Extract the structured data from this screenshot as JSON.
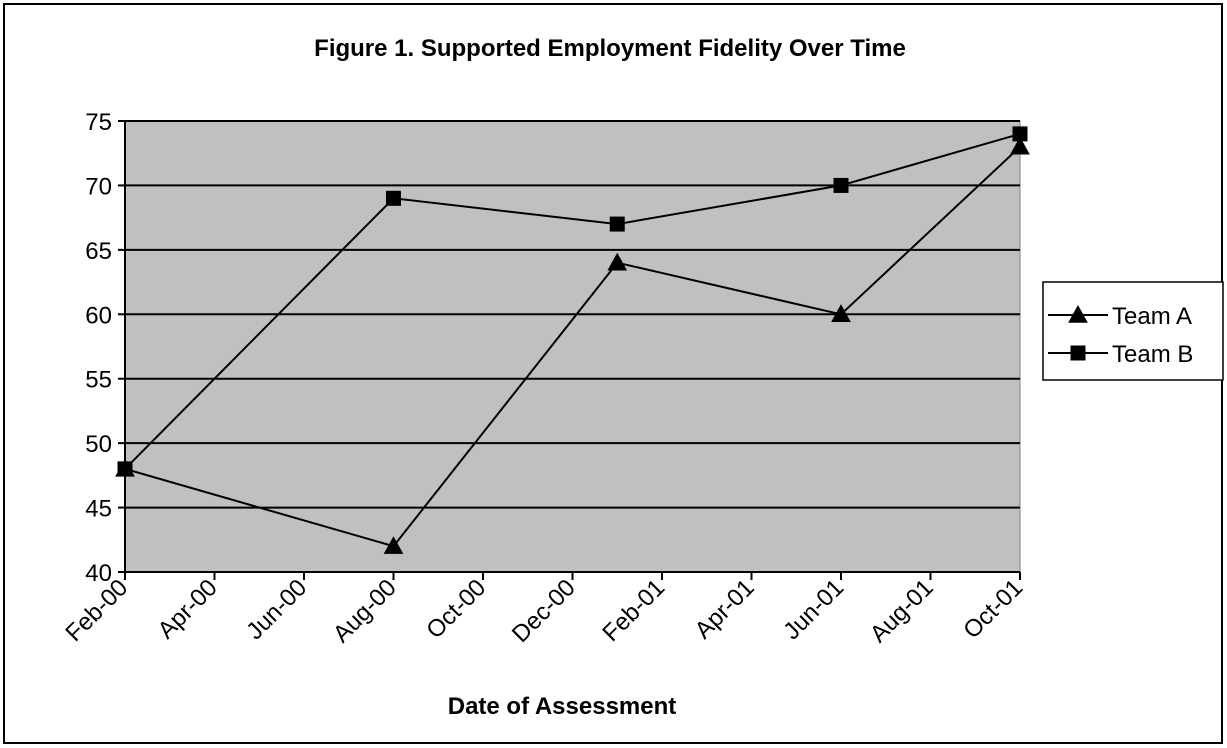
{
  "chart_data": {
    "type": "line",
    "title": "Figure 1. Supported Employment Fidelity Over Time",
    "xlabel": "Date of Assessment",
    "ylabel": "",
    "ylim": [
      40,
      75
    ],
    "yticks": [
      40,
      45,
      50,
      55,
      60,
      65,
      70,
      75
    ],
    "xlim": [
      "2000-02",
      "2001-10"
    ],
    "xtick_labels": [
      "Feb-00",
      "Apr-00",
      "Jun-00",
      "Aug-00",
      "Oct-00",
      "Dec-00",
      "Feb-01",
      "Apr-01",
      "Jun-01",
      "Aug-01",
      "Oct-01"
    ],
    "grid": "horizontal",
    "legend_position": "right",
    "plot_background": "#c0c0c0",
    "line_color": "#000000",
    "series": [
      {
        "name": "Team A",
        "marker": "triangle",
        "points": [
          {
            "x": "2000-02",
            "y": 48
          },
          {
            "x": "2000-08",
            "y": 42
          },
          {
            "x": "2001-01",
            "y": 64
          },
          {
            "x": "2001-06",
            "y": 60
          },
          {
            "x": "2001-10",
            "y": 73
          }
        ]
      },
      {
        "name": "Team B",
        "marker": "square",
        "points": [
          {
            "x": "2000-02",
            "y": 48
          },
          {
            "x": "2000-08",
            "y": 69
          },
          {
            "x": "2001-01",
            "y": 67
          },
          {
            "x": "2001-06",
            "y": 70
          },
          {
            "x": "2001-10",
            "y": 74
          }
        ]
      }
    ]
  }
}
